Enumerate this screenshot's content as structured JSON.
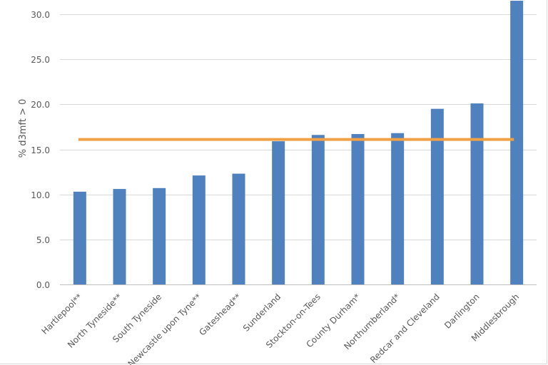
{
  "chart_data": {
    "type": "bar",
    "title": "",
    "xlabel": "",
    "ylabel": "% d3mft > 0",
    "ylim": [
      0,
      32
    ],
    "yticks": [
      "0.0",
      "5.0",
      "10.0",
      "15.0",
      "20.0",
      "25.0",
      "30.0"
    ],
    "grid": true,
    "categories": [
      "Hartlepool**",
      "North Tyneside**",
      "South Tyneside",
      "Newcastle upon Tyne**",
      "Gateshead**",
      "Sunderland",
      "Stockton-on-Tees",
      "County Durham*",
      "Northumberland*",
      "Redcar and Cleveland",
      "Darlington",
      "Middlesbrough"
    ],
    "series": [
      {
        "values": [
          10.3,
          10.6,
          10.7,
          12.1,
          12.3,
          15.9,
          16.6,
          16.7,
          16.8,
          19.5,
          20.1,
          31.5
        ],
        "color": "#4e81bd"
      }
    ],
    "reference_line": {
      "value": 16.1,
      "color": "#f0a045"
    }
  }
}
